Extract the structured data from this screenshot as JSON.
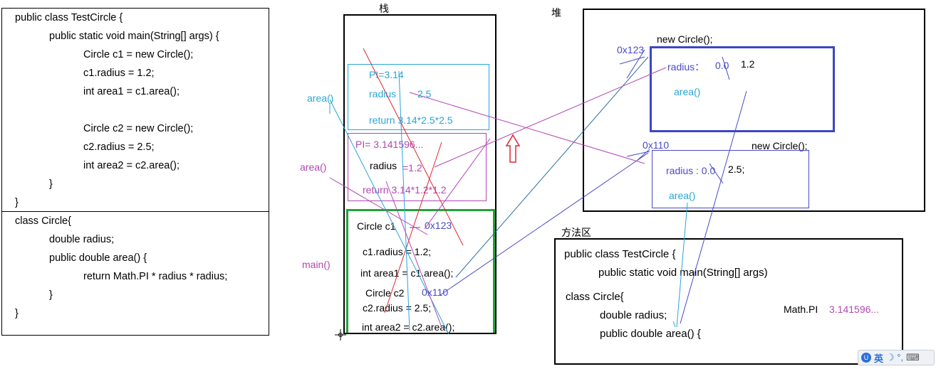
{
  "source_code": {
    "lines": [
      "public class TestCircle {",
      "public static void main(String[] args) {",
      "Circle c1 = new Circle();",
      "c1.radius = 1.2;",
      "int area1 = c1.area();",
      "Circle c2 = new Circle();",
      "c2.radius = 2.5;",
      "int area2 = c2.area();",
      "}",
      "}",
      "class Circle{",
      "double radius;",
      "public double area() {",
      "return Math.PI * radius * radius;",
      "}",
      "}"
    ]
  },
  "stack": {
    "title": "栈",
    "frame1": {
      "pi": "PI=3.14",
      "radius_label": "radius",
      "radius_value": "2.5",
      "return": "return 3.14*2.5*2.5"
    },
    "frame2": {
      "pi": "PI= 3.141596...",
      "radius_label": "radius",
      "radius_value": "=1.2",
      "return": "return 3.14*1.2*1.2"
    },
    "main_frame": {
      "c1_decl": "Circle c1",
      "c1_addr": "0x123",
      "c1_radius": "c1.radius = 1.2;",
      "area1": "int area1 = c1.area();",
      "c2_decl": "Circle c2",
      "c2_addr": "0x110",
      "c2_radius": "c2.radius = 2.5;",
      "area2": "int area2 = c2.area();"
    },
    "side_labels": {
      "area_upper": "area()",
      "area_lower": "area()",
      "main": "main()"
    }
  },
  "heap": {
    "title": "堆",
    "obj1": {
      "new_label": "new Circle();",
      "addr": "0x123",
      "radius_label": "radius：",
      "radius_default": "0.0",
      "radius_value": "1.2",
      "method": "area()"
    },
    "obj2": {
      "new_label": "new Circle();",
      "addr": "0x110",
      "radius_label": "radius : 0.0",
      "radius_value": "2.5;",
      "method": "area()"
    }
  },
  "method_area": {
    "title": "方法区",
    "lines": [
      "public class TestCircle {",
      "public static void main(String[] args)",
      "class Circle{",
      "double radius;",
      "public double area() {"
    ],
    "pi_label": "Math.PI",
    "pi_value": "3.141596..."
  },
  "ime": {
    "lang": "英",
    "icons": "☽ °,",
    "keyboard": "⌨"
  }
}
